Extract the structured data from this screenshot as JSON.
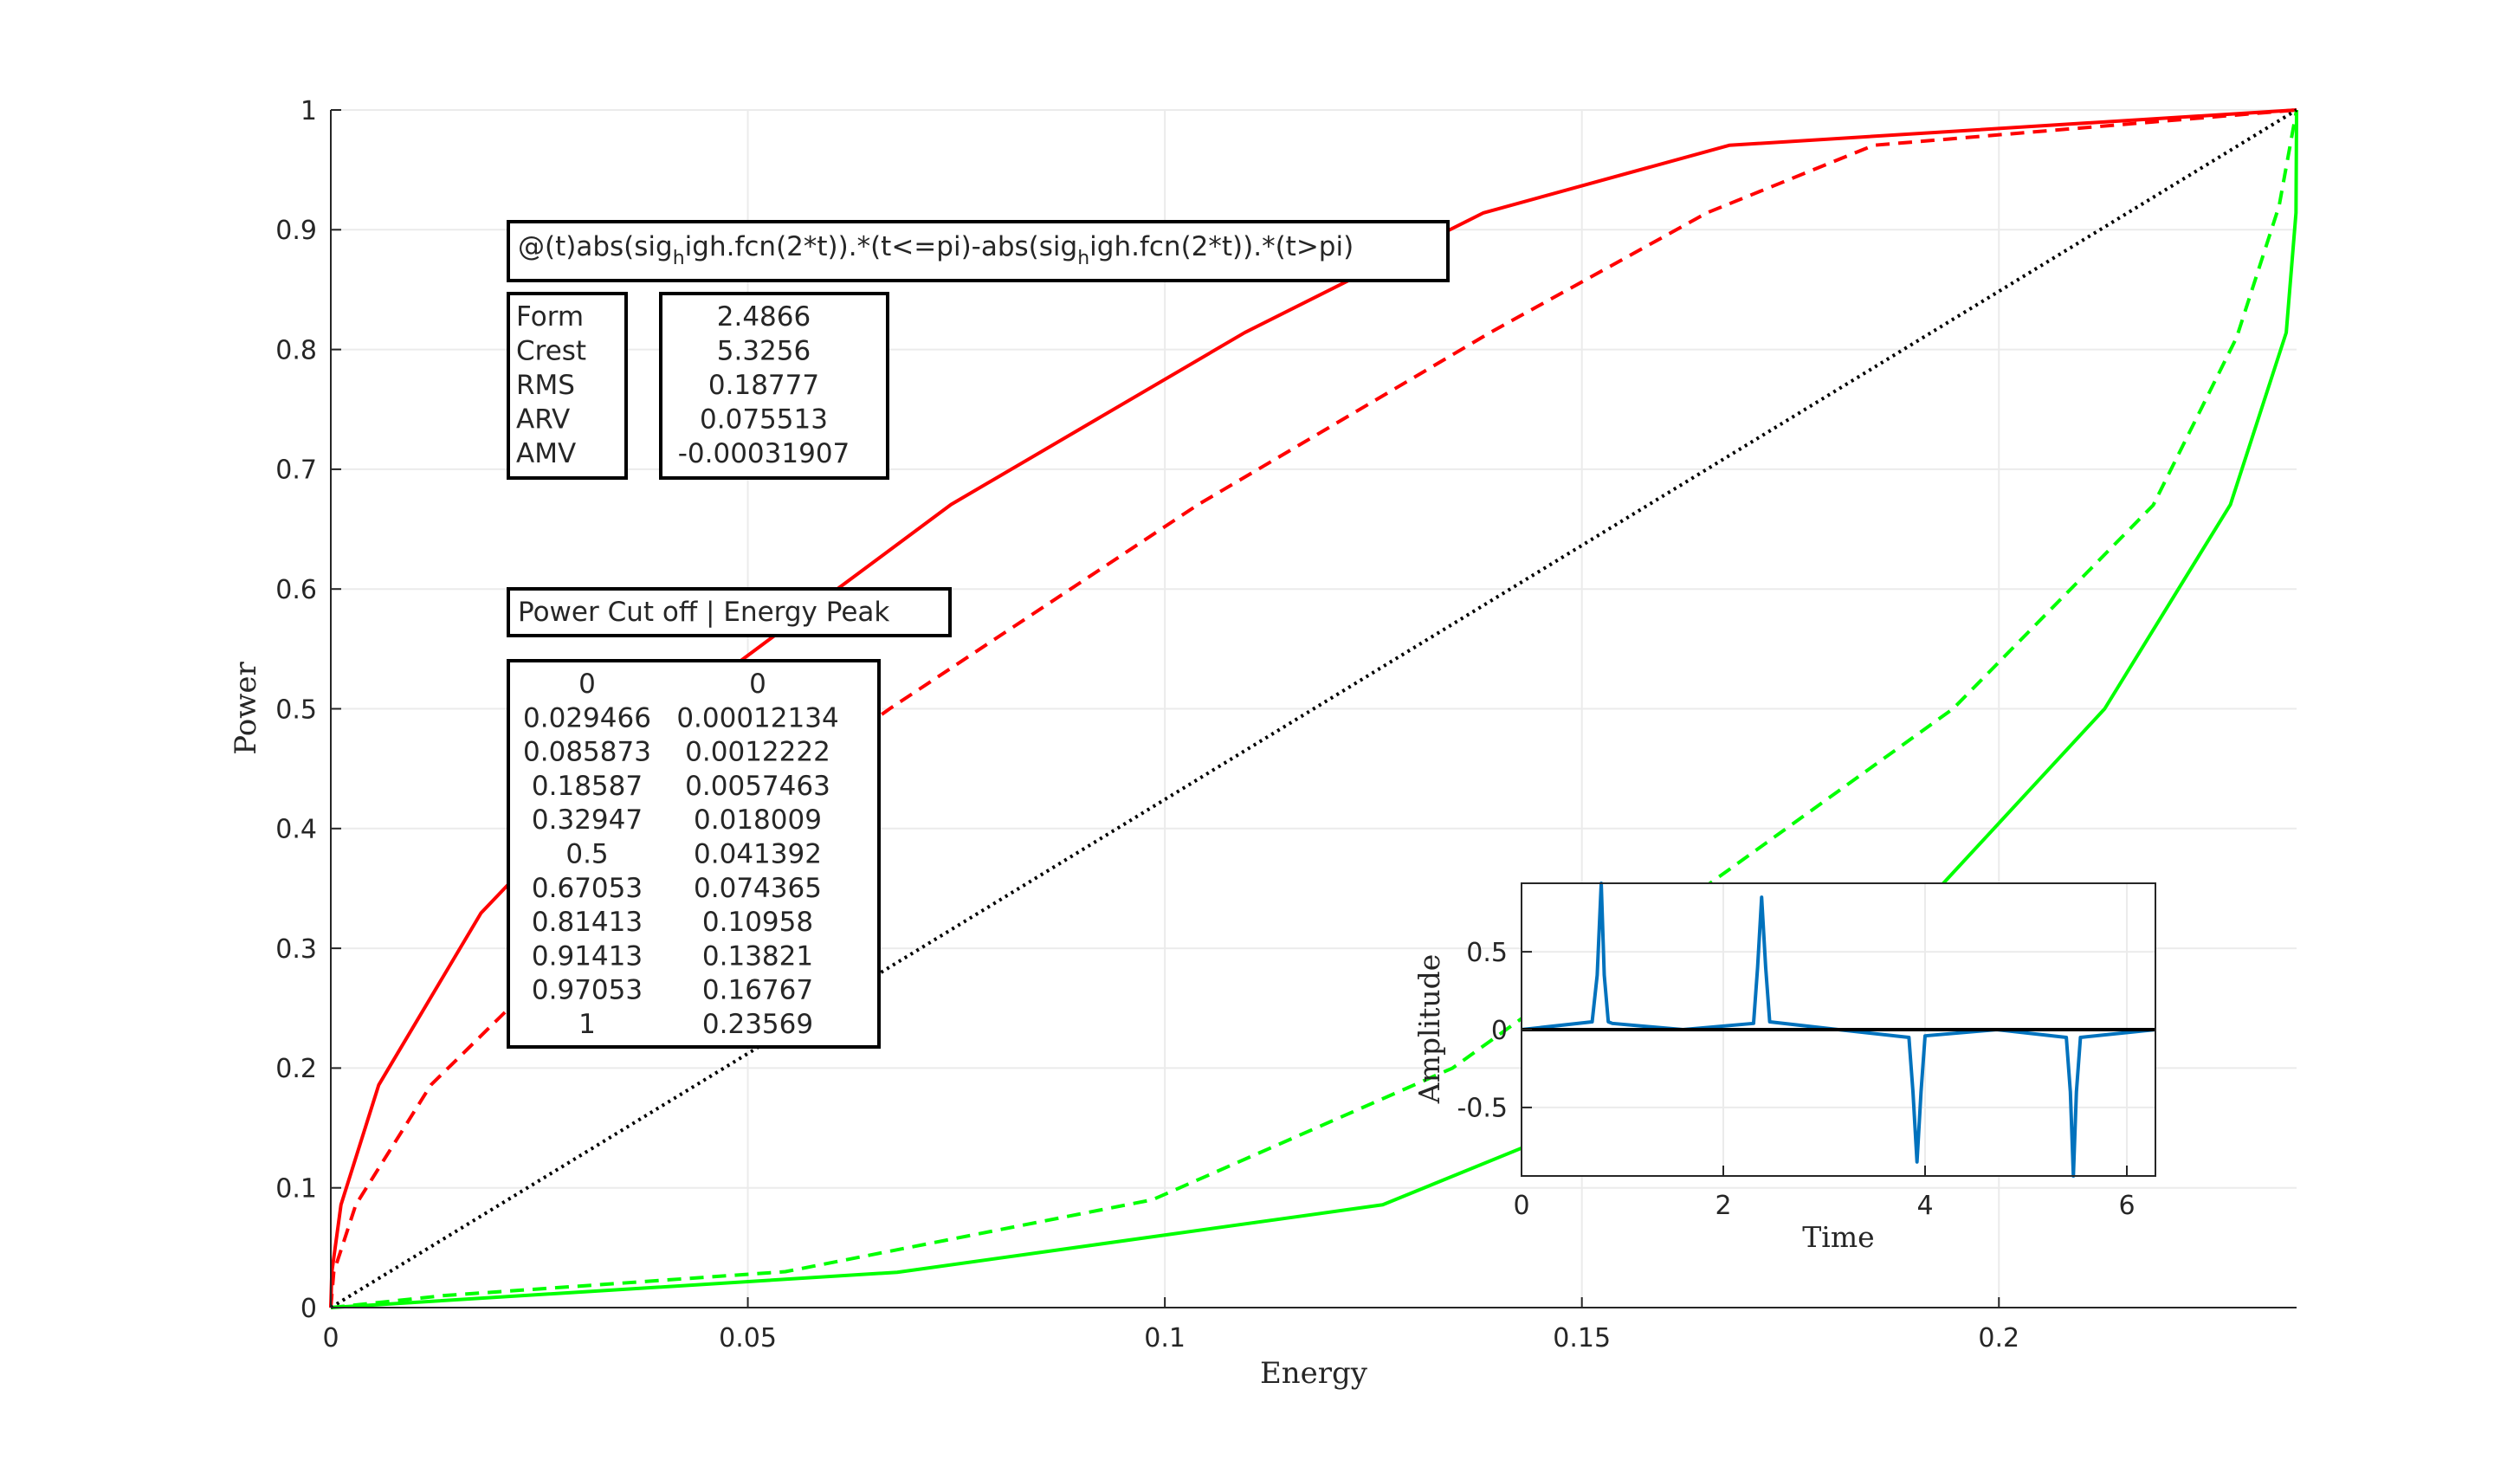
{
  "chart_data": [
    {
      "type": "line",
      "xlabel": "Energy",
      "ylabel": "Power",
      "xlim": [
        0,
        0.23569
      ],
      "ylim": [
        0,
        1
      ],
      "xticks": [
        0,
        0.05,
        0.1,
        0.15,
        0.2
      ],
      "xtick_labels": [
        "0",
        "0.05",
        "0.1",
        "0.15",
        "0.2"
      ],
      "yticks": [
        0,
        0.1,
        0.2,
        0.3,
        0.4,
        0.5,
        0.6,
        0.7,
        0.8,
        0.9,
        1
      ],
      "ytick_labels": [
        "0",
        "0.1",
        "0.2",
        "0.3",
        "0.4",
        "0.5",
        "0.6",
        "0.7",
        "0.8",
        "0.9",
        "1"
      ],
      "grid": true,
      "series": [
        {
          "color": "#ff0000",
          "style": "solid",
          "x": [
            0,
            0.00012134,
            0.0012222,
            0.0057463,
            0.018009,
            0.041392,
            0.074365,
            0.10958,
            0.13821,
            0.16767,
            0.23569
          ],
          "y": [
            0,
            0.029466,
            0.085873,
            0.18587,
            0.32947,
            0.5,
            0.67053,
            0.81413,
            0.91413,
            0.97053,
            1
          ]
        },
        {
          "color": "#ff0000",
          "style": "dashed",
          "x": [
            0,
            0.00035,
            0.003,
            0.012,
            0.033,
            0.067,
            0.104,
            0.139,
            0.165,
            0.185,
            0.23569
          ],
          "y": [
            0,
            0.029466,
            0.085873,
            0.18587,
            0.32947,
            0.5,
            0.67053,
            0.81413,
            0.91413,
            0.97053,
            1
          ]
        },
        {
          "color": "#00ff00",
          "style": "solid",
          "x": [
            0,
            0.06791,
            0.12612,
            0.16131,
            0.19004,
            0.21268,
            0.22776,
            0.23445,
            0.23562,
            0.23569
          ],
          "y": [
            0,
            0.02947,
            0.08587,
            0.18587,
            0.32947,
            0.5,
            0.67053,
            0.81413,
            0.91413,
            1
          ]
        },
        {
          "color": "#00ff00",
          "style": "dashed",
          "x": [
            0,
            0.0135,
            0.0545,
            0.0985,
            0.1345,
            0.1945,
            0.2185,
            0.2285,
            0.2336,
            0.23569
          ],
          "y": [
            0,
            0.01,
            0.03,
            0.09,
            0.2,
            0.5,
            0.67,
            0.81,
            0.92,
            1
          ]
        },
        {
          "color": "#000000",
          "style": "dotted",
          "x": [
            0,
            0.23569
          ],
          "y": [
            0,
            1
          ]
        }
      ]
    },
    {
      "type": "line",
      "xlabel": "Time",
      "ylabel": "Amplitude",
      "xlim": [
        0,
        6.2832
      ],
      "ylim": [
        -0.94,
        0.94
      ],
      "xticks": [
        0,
        2,
        4,
        6
      ],
      "xtick_labels": [
        "0",
        "2",
        "4",
        "6"
      ],
      "yticks": [
        -0.5,
        0,
        0.5
      ],
      "ytick_labels": [
        "-0.5",
        "0",
        "0.5"
      ],
      "grid": true,
      "series": [
        {
          "color": "#0072bd",
          "style": "solid",
          "x": [
            0,
            0.7,
            0.75,
            0.79,
            0.82,
            0.86,
            0.9,
            1.6,
            2.3,
            2.34,
            2.38,
            2.42,
            2.46,
            3.14,
            3.84,
            3.88,
            3.92,
            3.96,
            4.0,
            4.71,
            5.4,
            5.44,
            5.47,
            5.5,
            5.54,
            6.2832
          ],
          "y": [
            0,
            0.05,
            0.35,
            0.94,
            0.35,
            0.05,
            0.04,
            0,
            0.04,
            0.4,
            0.85,
            0.4,
            0.05,
            0,
            -0.05,
            -0.4,
            -0.85,
            -0.4,
            -0.04,
            0,
            -0.05,
            -0.4,
            -0.94,
            -0.4,
            -0.05,
            0
          ]
        },
        {
          "color": "#000000",
          "style": "solid",
          "x": [
            0,
            6.2832
          ],
          "y": [
            0,
            0
          ]
        }
      ]
    }
  ],
  "annotations": {
    "formula_prefix": "@(t)abs(sig",
    "formula_sub1": "h",
    "formula_mid": "igh.fcn(2*t)).*(t<=pi)-abs(sig",
    "formula_sub2": "h",
    "formula_suffix": "igh.fcn(2*t)).*(t>pi)",
    "stat_names": [
      "Form",
      "Crest",
      "RMS",
      "ARV",
      "AMV"
    ],
    "stat_values": [
      "2.4866",
      "5.3256",
      "0.18777",
      "0.075513",
      "-0.00031907"
    ],
    "table_header": "Power Cut off | Energy Peak",
    "table_rows": [
      [
        "0",
        "0"
      ],
      [
        "0.029466",
        "0.00012134"
      ],
      [
        "0.085873",
        "0.0012222"
      ],
      [
        "0.18587",
        "0.0057463"
      ],
      [
        "0.32947",
        "0.018009"
      ],
      [
        "0.5",
        "0.041392"
      ],
      [
        "0.67053",
        "0.074365"
      ],
      [
        "0.81413",
        "0.10958"
      ],
      [
        "0.91413",
        "0.13821"
      ],
      [
        "0.97053",
        "0.16767"
      ],
      [
        "1",
        "0.23569"
      ]
    ]
  }
}
